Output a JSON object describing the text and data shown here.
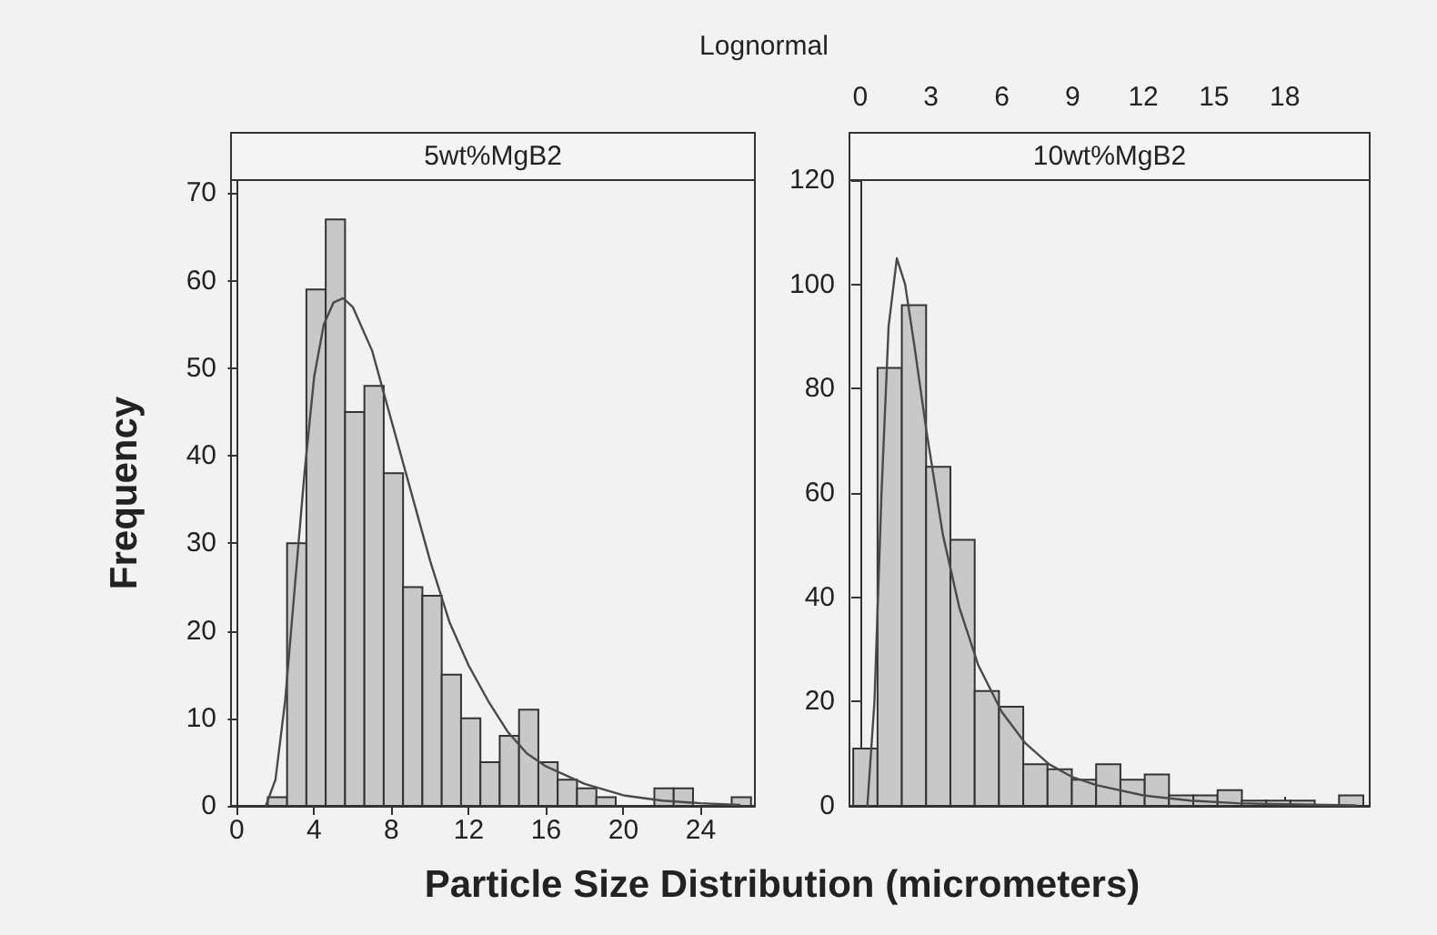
{
  "chart_data": [
    {
      "type": "histogram",
      "subtitle": "5wt%MgB2",
      "ylabel": "Frequency",
      "xlabel": "Particle Size Distribution (micrometers)",
      "bins": [
        1.6,
        2.6,
        3.6,
        4.6,
        5.6,
        6.6,
        7.6,
        8.6,
        9.6,
        10.6,
        11.6,
        12.6,
        13.6,
        14.6,
        15.6,
        16.6,
        17.6,
        18.6,
        19.6,
        20.6,
        21.6,
        22.6,
        23.6,
        24.6,
        25.6,
        26.6
      ],
      "xlim": [
        -0.3,
        26.8
      ],
      "xticks": [
        0,
        4,
        8,
        12,
        16,
        20,
        24
      ],
      "ylim": [
        0,
        71.5
      ],
      "yticks": [
        0,
        10,
        20,
        30,
        40,
        50,
        60,
        70
      ],
      "marker": "none",
      "series": [
        {
          "color": "#c8c8c8",
          "values": [
            1,
            30,
            59,
            67,
            45,
            48,
            38,
            25,
            24,
            15,
            10,
            5,
            8,
            11,
            5,
            3,
            2,
            1,
            0,
            0,
            2,
            2,
            0,
            0,
            1
          ]
        },
        {
          "type": "line",
          "color": "#4a4a4a",
          "x": [
            1.5,
            2,
            2.5,
            3,
            3.5,
            4,
            4.5,
            5,
            5.5,
            6,
            7,
            8,
            9,
            10,
            11,
            12,
            13,
            14,
            15,
            16,
            18,
            20,
            22,
            24,
            26
          ],
          "values": [
            0,
            3,
            12,
            25,
            38,
            49,
            55,
            57.5,
            58,
            57,
            52,
            44,
            36,
            28,
            21,
            16,
            12,
            8.5,
            6,
            4.5,
            2.5,
            1.2,
            0.6,
            0.3,
            0.1
          ]
        }
      ]
    },
    {
      "type": "histogram",
      "title": "Lognormal",
      "subtitle": "10wt%MgB2",
      "bins": [
        -0.3,
        0.73,
        1.76,
        2.79,
        3.82,
        4.85,
        5.88,
        6.91,
        7.94,
        8.97,
        10.0,
        11.03,
        12.06,
        13.09,
        14.12,
        15.15,
        16.18,
        17.21,
        18.24,
        19.27,
        20.3,
        21.33
      ],
      "xlim": [
        -0.46,
        21.6
      ],
      "xticks": [
        0,
        3,
        6,
        9,
        12,
        15,
        18
      ],
      "ylim": [
        0,
        120
      ],
      "yticks": [
        0,
        20,
        40,
        60,
        80,
        100,
        120
      ],
      "marker": "none",
      "series": [
        {
          "color": "#c8c8c8",
          "values": [
            11,
            84,
            96,
            65,
            51,
            22,
            19,
            8,
            7,
            5,
            8,
            5,
            6,
            2,
            2,
            3,
            1,
            1,
            1,
            0,
            2
          ]
        },
        {
          "type": "line",
          "color": "#4a4a4a",
          "x": [
            0.3,
            0.6,
            0.9,
            1.2,
            1.55,
            1.9,
            2.3,
            2.8,
            3.5,
            4.2,
            5,
            6,
            7,
            8,
            9,
            10,
            12,
            14,
            16,
            18,
            21
          ],
          "values": [
            0,
            20,
            60,
            92,
            105,
            100,
            88,
            72,
            52,
            38,
            27,
            18,
            12,
            8,
            5.5,
            4,
            2,
            1,
            0.5,
            0.3,
            0.1
          ]
        }
      ]
    }
  ]
}
